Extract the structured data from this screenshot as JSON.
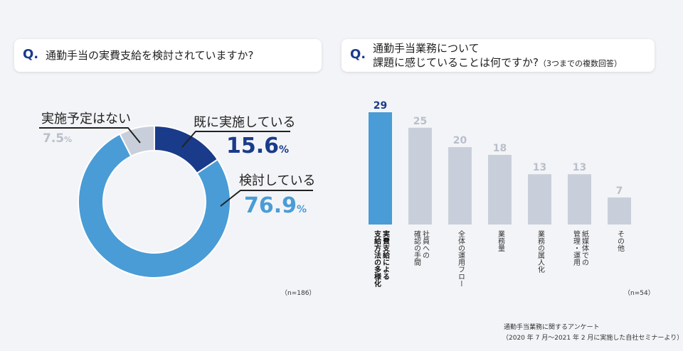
{
  "left": {
    "q_mark": "Q.",
    "question": "通勤手当の実費支給を検討されていますか?",
    "note": "（n=186）",
    "chart_data": {
      "type": "pie",
      "categories": [
        "既に実施している",
        "検討している",
        "実施予定はない"
      ],
      "values": [
        15.6,
        76.9,
        7.5
      ],
      "unit": "%",
      "value_labels": [
        "15.6",
        "76.9",
        "7.5"
      ],
      "colors": [
        "#1a3b8a",
        "#4a9cd6",
        "#c9cfda"
      ]
    }
  },
  "right": {
    "q_mark": "Q.",
    "question_line1": "通勤手当業務について",
    "question_line2": "課題に感じていることは何ですか?",
    "question_note": "（3つまでの複数回答）",
    "note": "（n=54）",
    "chart_data": {
      "type": "bar",
      "categories": [
        [
          "実費支給による",
          "支給方法の多様化"
        ],
        [
          "社員への",
          "確認の手間"
        ],
        [
          "全体の運用フロー"
        ],
        [
          "業務量"
        ],
        [
          "業務の属人化"
        ],
        [
          "紙媒体での",
          "管理・運用"
        ],
        [
          "その他"
        ]
      ],
      "values": [
        29,
        25,
        20,
        18,
        13,
        13,
        7
      ],
      "highlight_index": 0,
      "colors": {
        "highlight": "#4a9cd6",
        "normal": "#c9cfda",
        "highlight_label": "#1a3b8a",
        "normal_label": "#b9bfcb"
      }
    }
  },
  "footer": {
    "line1": "通勤手当業務に関するアンケート",
    "line2": "（2020 年 7 月〜2021 年 2 月に実施した自社セミナーより）"
  }
}
